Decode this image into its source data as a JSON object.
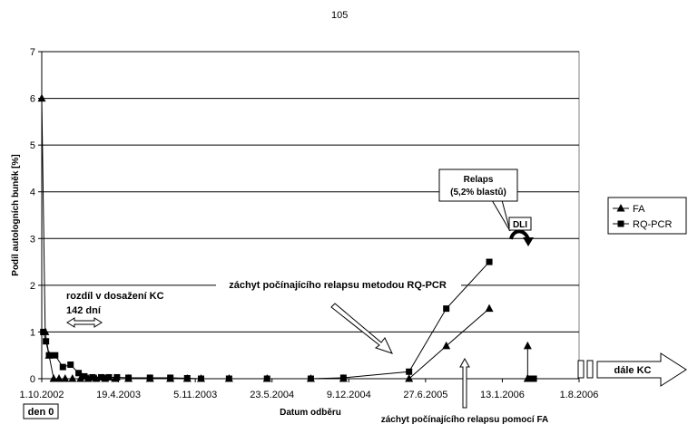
{
  "page_number": "105",
  "chart_data": {
    "type": "line",
    "title": "",
    "xlabel": "Datum odběru",
    "ylabel": "Podíl autologních buněk [%]",
    "ylim": [
      0,
      7
    ],
    "yticks": [
      "0",
      "1",
      "2",
      "3",
      "4",
      "5",
      "6",
      "7"
    ],
    "xlim": [
      "2002-10-01",
      "2006-08-01"
    ],
    "xticks": [
      {
        "date": "2002-10-01",
        "label": "1.10.2002"
      },
      {
        "date": "2003-04-19",
        "label": "19.4.2003"
      },
      {
        "date": "2003-11-05",
        "label": "5.11.2003"
      },
      {
        "date": "2004-05-23",
        "label": "23.5.2004"
      },
      {
        "date": "2004-12-09",
        "label": "9.12.2004"
      },
      {
        "date": "2005-06-27",
        "label": "27.6.2005"
      },
      {
        "date": "2006-01-13",
        "label": "13.1.2006"
      },
      {
        "date": "2006-08-01",
        "label": "1.8.2006"
      }
    ],
    "grid": "horizontal",
    "legend": "right",
    "series": [
      {
        "name": "FA",
        "marker": "triangle",
        "points": [
          {
            "x": "2002-10-01",
            "y": 6.0
          },
          {
            "x": "2002-10-10",
            "y": 1.0
          },
          {
            "x": "2002-10-20",
            "y": 0.5
          },
          {
            "x": "2002-11-01",
            "y": 0
          },
          {
            "x": "2002-11-15",
            "y": 0
          },
          {
            "x": "2002-12-01",
            "y": 0
          },
          {
            "x": "2002-12-20",
            "y": 0
          },
          {
            "x": "2003-01-10",
            "y": 0
          },
          {
            "x": "2003-01-30",
            "y": 0
          },
          {
            "x": "2003-02-20",
            "y": 0
          },
          {
            "x": "2003-03-15",
            "y": 0
          },
          {
            "x": "2003-04-10",
            "y": 0
          },
          {
            "x": "2003-05-15",
            "y": 0
          },
          {
            "x": "2003-07-10",
            "y": 0
          },
          {
            "x": "2003-09-01",
            "y": 0
          },
          {
            "x": "2003-10-15",
            "y": 0
          },
          {
            "x": "2003-11-20",
            "y": 0
          },
          {
            "x": "2004-02-01",
            "y": 0
          },
          {
            "x": "2004-05-10",
            "y": 0
          },
          {
            "x": "2004-09-01",
            "y": 0
          },
          {
            "x": "2004-11-25",
            "y": 0
          },
          {
            "x": "2005-05-15",
            "y": 0
          },
          {
            "x": "2005-08-20",
            "y": 0.7
          },
          {
            "x": "2005-12-10",
            "y": 1.5
          }
        ],
        "extra_points": [
          {
            "x": "2006-03-20",
            "y": 0.7
          },
          {
            "x": "2006-03-20",
            "y": 0
          }
        ]
      },
      {
        "name": "RQ-PCR",
        "marker": "square",
        "points": [
          {
            "x": "2002-10-05",
            "y": 1.0
          },
          {
            "x": "2002-10-12",
            "y": 0.8
          },
          {
            "x": "2002-10-20",
            "y": 0.5
          },
          {
            "x": "2002-11-05",
            "y": 0.5
          },
          {
            "x": "2002-11-25",
            "y": 0.25
          },
          {
            "x": "2002-12-15",
            "y": 0.3
          },
          {
            "x": "2003-01-05",
            "y": 0.12
          },
          {
            "x": "2003-01-20",
            "y": 0.05
          },
          {
            "x": "2003-02-10",
            "y": 0.03
          },
          {
            "x": "2003-03-05",
            "y": 0.03
          },
          {
            "x": "2003-03-25",
            "y": 0.03
          },
          {
            "x": "2003-04-15",
            "y": 0.03
          },
          {
            "x": "2003-05-15",
            "y": 0.02
          },
          {
            "x": "2003-07-10",
            "y": 0.02
          },
          {
            "x": "2003-09-01",
            "y": 0.02
          },
          {
            "x": "2003-10-15",
            "y": 0.01
          },
          {
            "x": "2003-11-20",
            "y": 0
          },
          {
            "x": "2004-02-01",
            "y": 0
          },
          {
            "x": "2004-05-10",
            "y": 0
          },
          {
            "x": "2004-09-01",
            "y": 0
          },
          {
            "x": "2004-11-25",
            "y": 0.02
          },
          {
            "x": "2005-05-15",
            "y": 0.15
          },
          {
            "x": "2005-08-20",
            "y": 1.5
          },
          {
            "x": "2005-12-10",
            "y": 2.5
          }
        ],
        "extra_points": [
          {
            "x": "2006-03-25",
            "y": 0
          },
          {
            "x": "2006-04-05",
            "y": 0
          }
        ]
      }
    ],
    "annotations": {
      "difference_line1": "rozdíl v dosažení KC",
      "difference_line2": "142 dní",
      "day_zero": "den 0",
      "rq_pcr_detection": "záchyt počínajícího relapsu metodou RQ-PCR",
      "fa_detection": "záchyt počínajícího relapsu pomocí FA",
      "relapse_line1": "Relaps",
      "relapse_line2": "(5,2% blastů)",
      "dli": "DLI",
      "continued": "dále KC"
    }
  },
  "colors": {
    "line": "#000000",
    "grid": "#000000",
    "background": "#ffffff"
  }
}
